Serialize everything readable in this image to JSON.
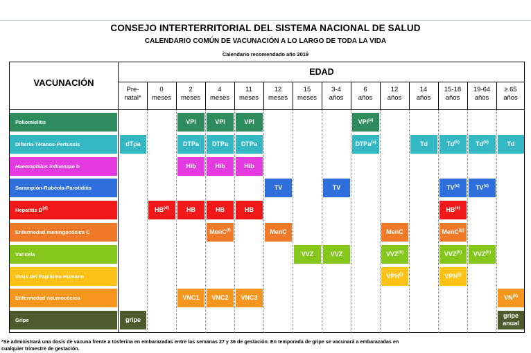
{
  "header": {
    "title": "CONSEJO INTERTERRITORIAL DEL SISTEMA NACIONAL DE SALUD",
    "subtitle": "CALENDARIO COMÚN DE VACUNACIÓN A LO LARGO DE TODA LA VIDA",
    "year_note": "Calendario recomendado año 2019"
  },
  "table": {
    "vaccination_header": "VACUNACIÓN",
    "age_header": "EDAD",
    "ages": [
      {
        "l1": "Pre-",
        "l2": "natal*"
      },
      {
        "l1": "0",
        "l2": "meses"
      },
      {
        "l1": "2",
        "l2": "meses"
      },
      {
        "l1": "4",
        "l2": "meses"
      },
      {
        "l1": "11",
        "l2": "meses"
      },
      {
        "l1": "12",
        "l2": "meses"
      },
      {
        "l1": "15",
        "l2": "meses"
      },
      {
        "l1": "3-4",
        "l2": "años"
      },
      {
        "l1": "6",
        "l2": "años"
      },
      {
        "l1": "12",
        "l2": "años"
      },
      {
        "l1": "14",
        "l2": "años"
      },
      {
        "l1": "15-18",
        "l2": "años"
      },
      {
        "l1": "19-64",
        "l2": "años"
      },
      {
        "l1": "≥ 65",
        "l2": "años"
      }
    ],
    "rows": [
      {
        "label": "Poliomielitis",
        "color": "#2e8b5e",
        "cells": [
          {
            "col": 2,
            "t": "VPI"
          },
          {
            "col": 3,
            "t": "VPI"
          },
          {
            "col": 4,
            "t": "VPI"
          },
          {
            "col": 8,
            "t": "VPI",
            "sup": "(a)"
          }
        ]
      },
      {
        "label": "Difteria-Tétanos-Pertussis",
        "color": "#33b8c4",
        "cells": [
          {
            "col": 0,
            "t": "dTpa"
          },
          {
            "col": 2,
            "t": "DTPa"
          },
          {
            "col": 3,
            "t": "DTPa"
          },
          {
            "col": 4,
            "t": "DTPa"
          },
          {
            "col": 8,
            "t": "DTPa",
            "sup": "(a)"
          },
          {
            "col": 10,
            "t": "Td"
          },
          {
            "col": 11,
            "t": "Td",
            "sup": "(b)"
          },
          {
            "col": 12,
            "t": "Td",
            "sup": "(b)"
          },
          {
            "col": 13,
            "t": "Td"
          }
        ]
      },
      {
        "label": "Haemophilus influenzae",
        "label_suffix": " b",
        "italic": true,
        "color": "#e33be0",
        "cells": [
          {
            "col": 2,
            "t": "Hib"
          },
          {
            "col": 3,
            "t": "Hib"
          },
          {
            "col": 4,
            "t": "Hib"
          }
        ]
      },
      {
        "label": "Sarampión-Rubéola-Parotiditis",
        "color": "#2f6fdc",
        "cells": [
          {
            "col": 5,
            "t": "TV"
          },
          {
            "col": 7,
            "t": "TV"
          },
          {
            "col": 11,
            "t": "TV",
            "sup": "(c)"
          },
          {
            "col": 12,
            "t": "TV",
            "sup": "(c)"
          }
        ]
      },
      {
        "label": "Hepatitis B",
        "label_sup": "(d)",
        "color": "#f01818",
        "cells": [
          {
            "col": 1,
            "t": "HB",
            "sup": "(d)"
          },
          {
            "col": 2,
            "t": "HB"
          },
          {
            "col": 3,
            "t": "HB"
          },
          {
            "col": 4,
            "t": "HB"
          },
          {
            "col": 11,
            "t": "HB",
            "sup": "(e)"
          }
        ]
      },
      {
        "label": "Enfermedad meningocócica C",
        "color": "#f07a2a",
        "cells": [
          {
            "col": 3,
            "t": "MenC",
            "sup": "(f)"
          },
          {
            "col": 5,
            "t": "MenC"
          },
          {
            "col": 9,
            "t": "MenC"
          },
          {
            "col": 11,
            "t": "MenC",
            "sup": "(g)"
          }
        ]
      },
      {
        "label": "Varicela",
        "color": "#84c61c",
        "cells": [
          {
            "col": 6,
            "t": "VVZ"
          },
          {
            "col": 7,
            "t": "VVZ"
          },
          {
            "col": 9,
            "t": "VVZ",
            "sup": "(h)"
          },
          {
            "col": 11,
            "t": "VVZ",
            "sup": "(h)"
          },
          {
            "col": 12,
            "t": "VVZ",
            "sup": "(h)"
          }
        ]
      },
      {
        "label": "Virus del Papiloma Humano",
        "color": "#fcc218",
        "cells": [
          {
            "col": 9,
            "t": "VPH",
            "sup": "(i)"
          },
          {
            "col": 11,
            "t": "VPH",
            "sup": "(j)"
          }
        ]
      },
      {
        "label": "Enfermedad neumocócica",
        "color": "#f7961f",
        "cells": [
          {
            "col": 2,
            "t": "VNC1"
          },
          {
            "col": 3,
            "t": "VNC2"
          },
          {
            "col": 4,
            "t": "VNC3"
          },
          {
            "col": 13,
            "t": "VN",
            "sup": "(k)"
          }
        ]
      },
      {
        "label": "Gripe",
        "color": "#4e5a2b",
        "cells": [
          {
            "col": 0,
            "t": "gripe"
          },
          {
            "col": 13,
            "t": "gripe",
            "t2": "anual"
          }
        ]
      }
    ]
  },
  "footnote": {
    "line1": "*Se administrará una dosis de vacuna frente a tosferina en embarazadas entre las semanas 27 y 36 de gestación. En temporada de gripe se vacunará a embarazadas en",
    "line2": "cualquier trimestre de gestación."
  }
}
